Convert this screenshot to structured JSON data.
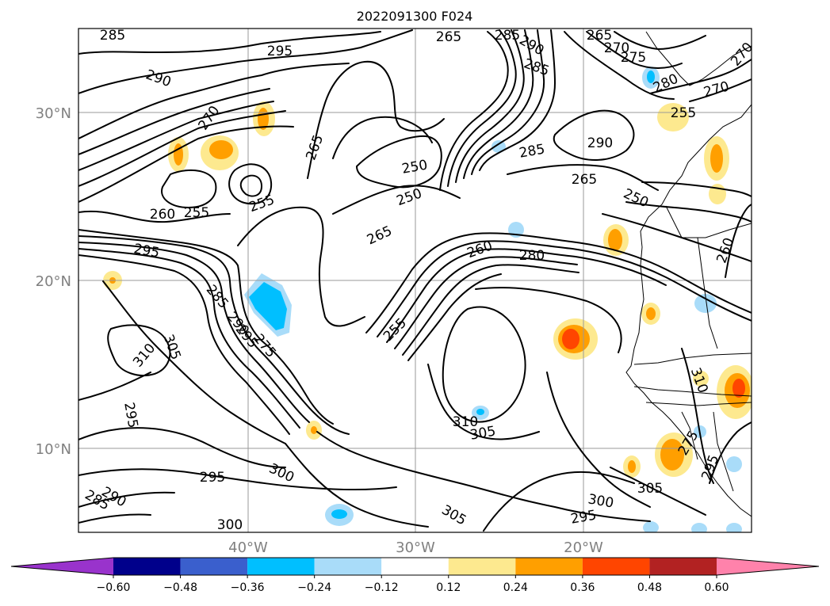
{
  "title": "2022091300 F024",
  "map": {
    "lat_ticks": [
      "30°N",
      "20°N",
      "10°N"
    ],
    "lon_ticks": [
      "40°W",
      "30°W",
      "20°W"
    ],
    "contour_labels": [
      "285",
      "295",
      "290",
      "265",
      "285",
      "290",
      "265",
      "270",
      "275",
      "280",
      "270",
      "285",
      "270",
      "265",
      "250",
      "285",
      "290",
      "255",
      "250",
      "265",
      "260",
      "255",
      "270",
      "250",
      "255",
      "265",
      "260",
      "280",
      "260",
      "295",
      "285",
      "290",
      "295",
      "275",
      "310",
      "305",
      "255",
      "300",
      "295",
      "310",
      "305",
      "305",
      "310",
      "295",
      "300",
      "295",
      "300",
      "305",
      "290",
      "285",
      "295",
      "275"
    ],
    "shading_colors": {
      "pale_yellow": "#fde98f",
      "orange": "#ff9f00",
      "red_orange": "#ff4500",
      "light_blue": "#a9dcf9",
      "cyan": "#00bfff"
    }
  },
  "colorbar": {
    "colors": [
      "#9933cc",
      "#00008b",
      "#3a5fcd",
      "#00bfff",
      "#a9dcf9",
      "#ffffff",
      "#fde98f",
      "#ff9f00",
      "#ff4500",
      "#b22222",
      "#ff82ab"
    ],
    "ticks": [
      "−0.60",
      "−0.48",
      "−0.36",
      "−0.24",
      "−0.12",
      "0.12",
      "0.24",
      "0.36",
      "0.48",
      "0.60"
    ]
  }
}
